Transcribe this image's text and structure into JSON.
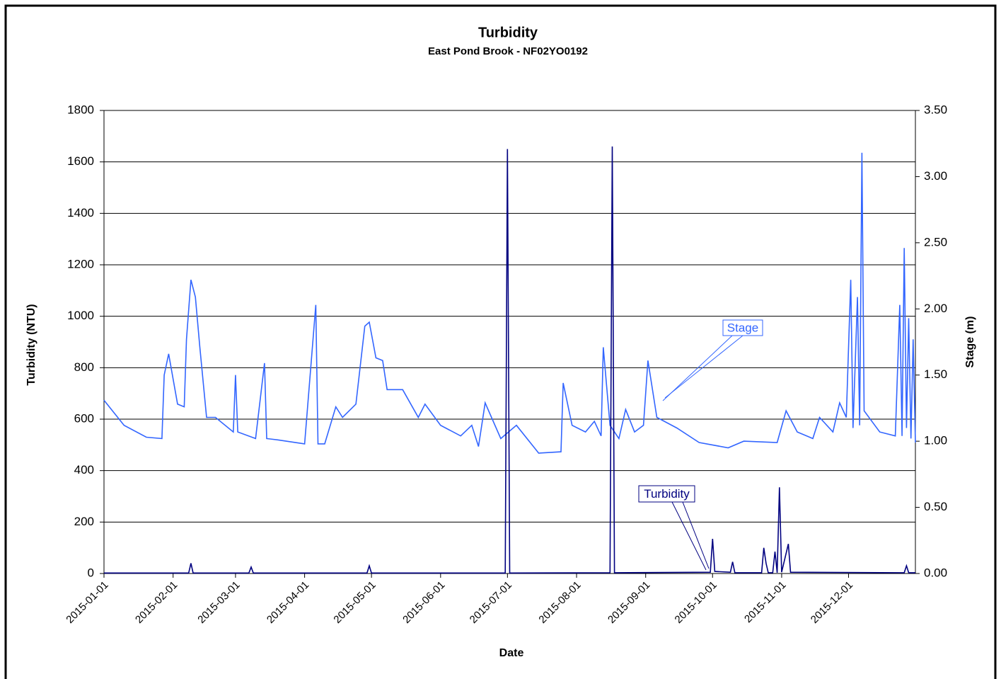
{
  "chart_data": {
    "type": "line",
    "title": "Turbidity",
    "subtitle": "East Pond Brook - NF02YO0192",
    "xlabel": "Date",
    "ylabel": "Turbidity (NTU)",
    "y2label": "Stage (m)",
    "xlim": [
      "2015-01-01",
      "2015-12-31"
    ],
    "xticks": [
      "2015-01-01",
      "2015-02-01",
      "2015-03-01",
      "2015-04-01",
      "2015-05-01",
      "2015-06-01",
      "2015-07-01",
      "2015-08-01",
      "2015-09-01",
      "2015-10-01",
      "2015-11-01",
      "2015-12-01"
    ],
    "ylim": [
      0,
      1800
    ],
    "yticks": [
      0,
      200,
      400,
      600,
      800,
      1000,
      1200,
      1400,
      1600,
      1800
    ],
    "y2lim": [
      0,
      3.5
    ],
    "y2ticks": [
      {
        "value": 0,
        "label": "0.00"
      },
      {
        "value": 0.5,
        "label": "0.50"
      },
      {
        "value": 1,
        "label": "1.00"
      },
      {
        "value": 1.5,
        "label": "1.50"
      },
      {
        "value": 2,
        "label": "2.00"
      },
      {
        "value": 2.5,
        "label": "2.50"
      },
      {
        "value": 3,
        "label": "3.00"
      },
      {
        "value": 3.5,
        "label": "3.50"
      }
    ],
    "grid": true,
    "series": [
      {
        "name": "Stage",
        "color": "#3366ff",
        "axis": "y2",
        "x": [
          "2015-01-01",
          "2015-01-10",
          "2015-01-20",
          "2015-01-27",
          "2015-01-28",
          "2015-01-30",
          "2015-02-03",
          "2015-02-06",
          "2015-02-07",
          "2015-02-09",
          "2015-02-11",
          "2015-02-13",
          "2015-02-16",
          "2015-02-20",
          "2015-02-28",
          "2015-03-01",
          "2015-03-02",
          "2015-03-10",
          "2015-03-14",
          "2015-03-15",
          "2015-03-20",
          "2015-04-01",
          "2015-04-06",
          "2015-04-07",
          "2015-04-10",
          "2015-04-15",
          "2015-04-18",
          "2015-04-24",
          "2015-04-28",
          "2015-04-30",
          "2015-05-03",
          "2015-05-06",
          "2015-05-08",
          "2015-05-15",
          "2015-05-22",
          "2015-05-25",
          "2015-06-01",
          "2015-06-10",
          "2015-06-15",
          "2015-06-18",
          "2015-06-21",
          "2015-06-28",
          "2015-07-05",
          "2015-07-15",
          "2015-07-25",
          "2015-07-26",
          "2015-07-30",
          "2015-08-05",
          "2015-08-09",
          "2015-08-12",
          "2015-08-13",
          "2015-08-16",
          "2015-08-20",
          "2015-08-23",
          "2015-08-27",
          "2015-08-31",
          "2015-09-02",
          "2015-09-06",
          "2015-09-15",
          "2015-09-25",
          "2015-10-08",
          "2015-10-15",
          "2015-10-30",
          "2015-11-03",
          "2015-11-08",
          "2015-11-15",
          "2015-11-18",
          "2015-11-24",
          "2015-11-27",
          "2015-11-30",
          "2015-12-02",
          "2015-12-03",
          "2015-12-05",
          "2015-12-06",
          "2015-12-07",
          "2015-12-08",
          "2015-12-15",
          "2015-12-22",
          "2015-12-24",
          "2015-12-25",
          "2015-12-26",
          "2015-12-27",
          "2015-12-28",
          "2015-12-29",
          "2015-12-30",
          "2015-12-31"
        ],
        "values": [
          1.31,
          1.12,
          1.03,
          1.02,
          1.5,
          1.66,
          1.28,
          1.26,
          1.77,
          2.22,
          2.09,
          1.71,
          1.18,
          1.18,
          1.07,
          1.5,
          1.07,
          1.02,
          1.59,
          1.02,
          1.01,
          0.98,
          2.03,
          0.98,
          0.98,
          1.26,
          1.18,
          1.28,
          1.87,
          1.9,
          1.63,
          1.61,
          1.39,
          1.39,
          1.18,
          1.28,
          1.12,
          1.04,
          1.12,
          0.96,
          1.29,
          1.02,
          1.12,
          0.91,
          0.92,
          1.44,
          1.12,
          1.07,
          1.15,
          1.04,
          1.71,
          1.12,
          1.02,
          1.24,
          1.07,
          1.12,
          1.61,
          1.18,
          1.1,
          0.99,
          0.95,
          1.0,
          0.99,
          1.23,
          1.07,
          1.02,
          1.18,
          1.07,
          1.29,
          1.18,
          2.22,
          1.1,
          2.09,
          1.12,
          3.18,
          1.23,
          1.07,
          1.04,
          2.03,
          1.04,
          2.46,
          1.1,
          1.93,
          1.02,
          1.77,
          0.99
        ]
      },
      {
        "name": "Turbidity",
        "color": "#000080",
        "axis": "y",
        "x": [
          "2015-01-01",
          "2015-02-08",
          "2015-02-09",
          "2015-02-10",
          "2015-03-07",
          "2015-03-08",
          "2015-03-09",
          "2015-04-29",
          "2015-04-30",
          "2015-05-01",
          "2015-06-30",
          "2015-07-01",
          "2015-07-02",
          "2015-08-16",
          "2015-08-17",
          "2015-08-18",
          "2015-09-30",
          "2015-10-01",
          "2015-10-02",
          "2015-10-09",
          "2015-10-10",
          "2015-10-11",
          "2015-10-23",
          "2015-10-24",
          "2015-10-25",
          "2015-10-26",
          "2015-10-28",
          "2015-10-29",
          "2015-10-30",
          "2015-10-31",
          "2015-11-01",
          "2015-11-04",
          "2015-11-05",
          "2015-12-26",
          "2015-12-27",
          "2015-12-28",
          "2015-12-31"
        ],
        "values": [
          2,
          2,
          40,
          2,
          2,
          25,
          2,
          2,
          30,
          2,
          2,
          1650,
          2,
          3,
          1660,
          3,
          5,
          135,
          8,
          5,
          45,
          3,
          3,
          100,
          40,
          3,
          3,
          85,
          3,
          335,
          5,
          115,
          5,
          3,
          30,
          3,
          3
        ]
      }
    ],
    "annotations": [
      "Stage",
      "Turbidity"
    ]
  }
}
